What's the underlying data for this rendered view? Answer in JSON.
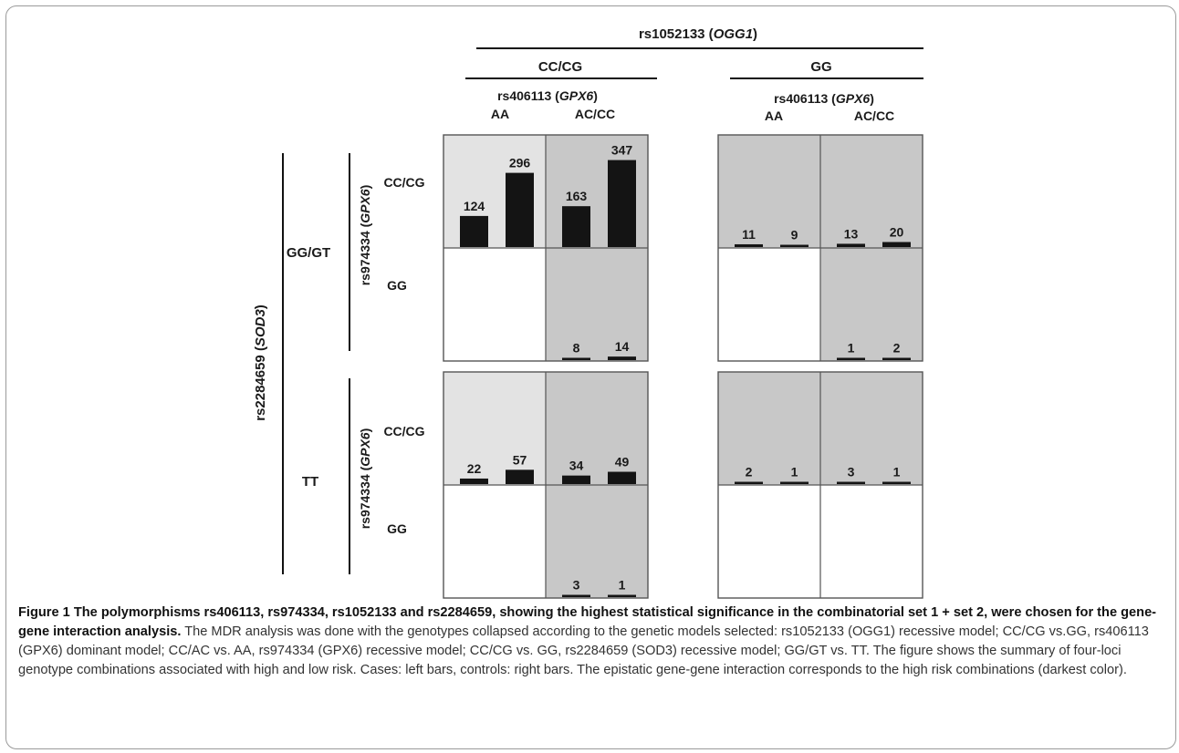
{
  "colors": {
    "high_risk": "#c8c8c8",
    "low_risk_light": "#e3e3e3",
    "low_risk_white": "#ffffff",
    "bar": "#141414",
    "border": "#555555"
  },
  "labels": {
    "ogg1_prefix": "rs1052133 (",
    "ogg1_gene": "OGG1",
    "ogg1_suffix": ")",
    "ogg1_left": "CC/CG",
    "ogg1_right": "GG",
    "gpx6a_prefix": "rs406113 (",
    "gpx6a_gene": "GPX6",
    "gpx6a_suffix": ")",
    "gpx6a_aa": "AA",
    "gpx6a_acc": "AC/CC",
    "sod3_prefix": "rs2284659 (",
    "sod3_gene": "SOD3",
    "sod3_suffix": ")",
    "sod3_top": "GG/GT",
    "sod3_bottom": "TT",
    "gpx6b_prefix": "rs974334 (",
    "gpx6b_gene": "GPX6",
    "gpx6b_suffix": ")",
    "gpx6b_cccg": "CC/CG",
    "gpx6b_gg": "GG"
  },
  "chart_data": {
    "type": "bar",
    "bar_order": [
      "Cases",
      "Controls"
    ],
    "factors": {
      "rs1052133 (OGG1)": [
        "CC/CG",
        "GG"
      ],
      "rs406113 (GPX6)": [
        "AA",
        "AC/CC"
      ],
      "rs2284659 (SOD3)": [
        "GG/GT",
        "TT"
      ],
      "rs974334 (GPX6)": [
        "CC/CG",
        "GG"
      ]
    },
    "cells": [
      {
        "ogg1": "CC/CG",
        "gpx6_406113": "AA",
        "sod3": "GG/GT",
        "gpx6_974334": "CC/CG",
        "risk": "low-light",
        "cases": 124,
        "controls": 296
      },
      {
        "ogg1": "CC/CG",
        "gpx6_406113": "AC/CC",
        "sod3": "GG/GT",
        "gpx6_974334": "CC/CG",
        "risk": "high",
        "cases": 163,
        "controls": 347
      },
      {
        "ogg1": "CC/CG",
        "gpx6_406113": "AA",
        "sod3": "GG/GT",
        "gpx6_974334": "GG",
        "risk": "empty",
        "cases": null,
        "controls": null
      },
      {
        "ogg1": "CC/CG",
        "gpx6_406113": "AC/CC",
        "sod3": "GG/GT",
        "gpx6_974334": "GG",
        "risk": "high",
        "cases": 8,
        "controls": 14
      },
      {
        "ogg1": "CC/CG",
        "gpx6_406113": "AA",
        "sod3": "TT",
        "gpx6_974334": "CC/CG",
        "risk": "low-light",
        "cases": 22,
        "controls": 57
      },
      {
        "ogg1": "CC/CG",
        "gpx6_406113": "AC/CC",
        "sod3": "TT",
        "gpx6_974334": "CC/CG",
        "risk": "high",
        "cases": 34,
        "controls": 49
      },
      {
        "ogg1": "CC/CG",
        "gpx6_406113": "AA",
        "sod3": "TT",
        "gpx6_974334": "GG",
        "risk": "empty",
        "cases": null,
        "controls": null
      },
      {
        "ogg1": "CC/CG",
        "gpx6_406113": "AC/CC",
        "sod3": "TT",
        "gpx6_974334": "GG",
        "risk": "high",
        "cases": 3,
        "controls": 1
      },
      {
        "ogg1": "GG",
        "gpx6_406113": "AA",
        "sod3": "GG/GT",
        "gpx6_974334": "CC/CG",
        "risk": "high",
        "cases": 11,
        "controls": 9
      },
      {
        "ogg1": "GG",
        "gpx6_406113": "AC/CC",
        "sod3": "GG/GT",
        "gpx6_974334": "CC/CG",
        "risk": "high",
        "cases": 13,
        "controls": 20
      },
      {
        "ogg1": "GG",
        "gpx6_406113": "AA",
        "sod3": "GG/GT",
        "gpx6_974334": "GG",
        "risk": "empty",
        "cases": null,
        "controls": null
      },
      {
        "ogg1": "GG",
        "gpx6_406113": "AC/CC",
        "sod3": "GG/GT",
        "gpx6_974334": "GG",
        "risk": "high",
        "cases": 1,
        "controls": 2
      },
      {
        "ogg1": "GG",
        "gpx6_406113": "AA",
        "sod3": "TT",
        "gpx6_974334": "CC/CG",
        "risk": "high",
        "cases": 2,
        "controls": 1
      },
      {
        "ogg1": "GG",
        "gpx6_406113": "AC/CC",
        "sod3": "TT",
        "gpx6_974334": "CC/CG",
        "risk": "high",
        "cases": 3,
        "controls": 1
      },
      {
        "ogg1": "GG",
        "gpx6_406113": "AA",
        "sod3": "TT",
        "gpx6_974334": "GG",
        "risk": "empty",
        "cases": null,
        "controls": null
      },
      {
        "ogg1": "GG",
        "gpx6_406113": "AC/CC",
        "sod3": "TT",
        "gpx6_974334": "GG",
        "risk": "empty",
        "cases": null,
        "controls": null
      }
    ]
  },
  "caption": {
    "title": "Figure 1 The polymorphisms rs406113, rs974334, rs1052133 and rs2284659, showing the highest statistical significance in the combinatorial set 1 + set 2, were chosen for the gene-gene interaction analysis.",
    "body": " The MDR analysis was done with the genotypes collapsed according to the genetic models selected: rs1052133 (OGG1) recessive model; CC/CG vs.GG, rs406113 (GPX6) dominant model; CC/AC vs. AA, rs974334 (GPX6) recessive model; CC/CG vs. GG, rs2284659 (SOD3) recessive model; GG/GT vs. TT. The figure shows the summary of four-loci genotype combinations associated with high and low risk. Cases: left bars, controls: right bars. The epistatic gene-gene interaction corresponds to the high risk combinations (darkest color)."
  }
}
